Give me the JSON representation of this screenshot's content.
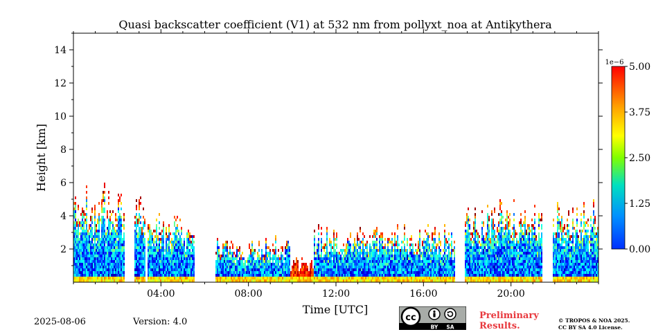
{
  "chart_data": {
    "type": "heatmap",
    "title": "Quasi backscatter coefficient (V1) at 532 nm from pollyxt_noa at Antikythera",
    "xlabel": "Time [UTC]",
    "ylabel": "Height [km]",
    "x_range_hours": [
      0,
      24
    ],
    "ylim": [
      0,
      15
    ],
    "x_ticks": [
      "04:00",
      "08:00",
      "12:00",
      "16:00",
      "20:00"
    ],
    "x_tick_hours": [
      4,
      8,
      12,
      16,
      20
    ],
    "y_ticks": [
      "2",
      "4",
      "6",
      "8",
      "10",
      "12",
      "14"
    ],
    "y_tick_values": [
      2,
      4,
      6,
      8,
      10,
      12,
      14
    ],
    "colorbar": {
      "exponent_label": "1e−6",
      "ticks": [
        "0.00",
        "1.25",
        "2.50",
        "3.75",
        "5.00"
      ],
      "tick_values": [
        0,
        1.25,
        2.5,
        3.75,
        5.0
      ],
      "range": [
        0,
        5.0
      ],
      "colormap": "jet"
    },
    "segments": [
      {
        "start_hour": 0.0,
        "end_hour": 2.3,
        "top_km": 6.2
      },
      {
        "start_hour": 2.8,
        "end_hour": 3.3,
        "top_km": 5.8
      },
      {
        "start_hour": 3.4,
        "end_hour": 5.5,
        "top_km": 4.5
      },
      {
        "start_hour": 6.5,
        "end_hour": 9.9,
        "top_km": 3.0
      },
      {
        "start_hour": 9.9,
        "end_hour": 11.0,
        "top_km": 1.6
      },
      {
        "start_hour": 11.0,
        "end_hour": 17.4,
        "top_km": 3.7
      },
      {
        "start_hour": 17.9,
        "end_hour": 21.4,
        "top_km": 5.3
      },
      {
        "start_hour": 21.9,
        "end_hour": 24.0,
        "top_km": 5.3
      }
    ],
    "grid": false,
    "legend": "colorbar-right"
  },
  "footer": {
    "date": "2025-08-06",
    "version": "Version: 4.0",
    "preliminary_line1": "Preliminary",
    "preliminary_line2": "Results.",
    "copyright_line1": "© TROPOS & NOA 2025.",
    "copyright_line2": "CC BY SA 4.0 License.",
    "cc_labels": {
      "cc": "cc",
      "by": "BY",
      "sa": "SA"
    }
  },
  "colors": {
    "low": "#0000ff",
    "high": "#ff0000",
    "accent_red": "#e8383d"
  }
}
